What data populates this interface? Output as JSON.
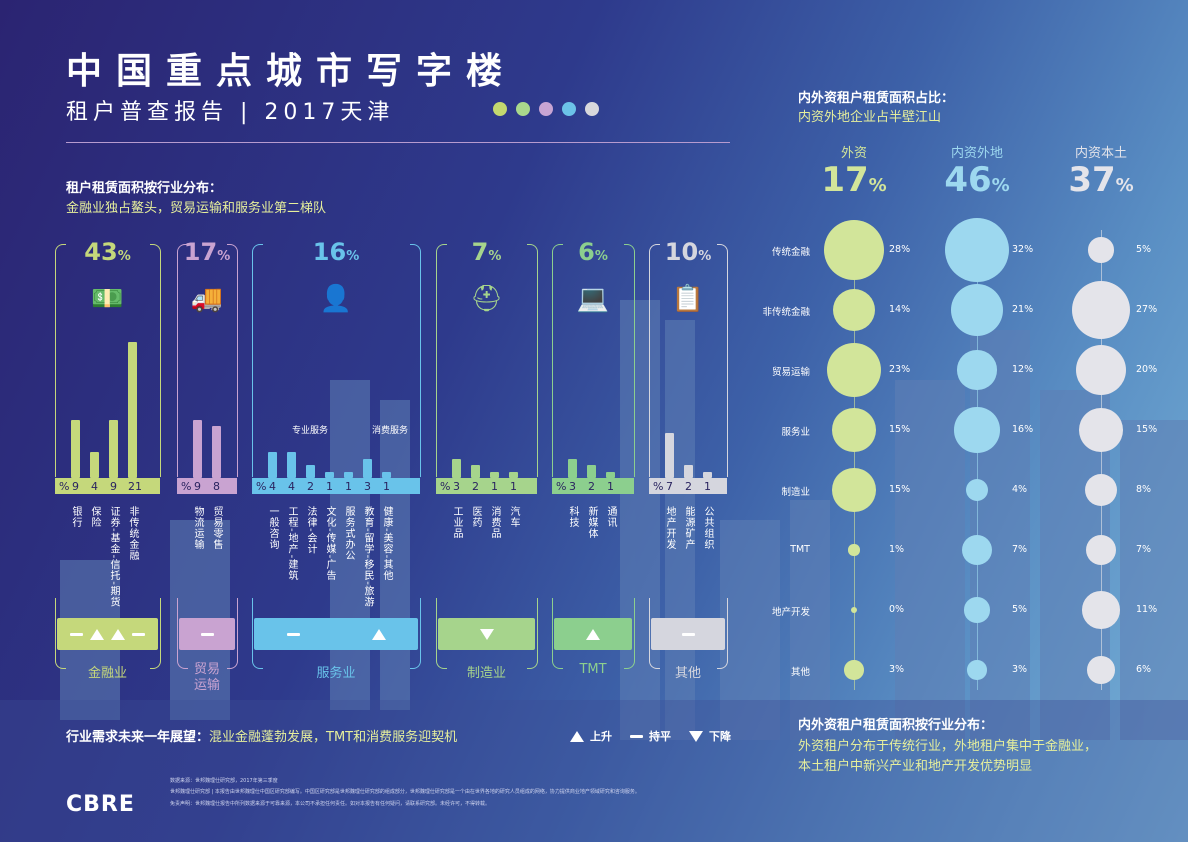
{
  "header": {
    "title": "中国重点城市写字楼",
    "subtitle": "租户普查报告 | 2017天津",
    "dots": [
      "#c3d86f",
      "#a9d98c",
      "#c8a5d3",
      "#6cc3e8",
      "#d8d8dc"
    ]
  },
  "left": {
    "title": "租户租赁面积按行业分布：",
    "subtitle": "金融业独占鳌头，贸易运输和服务业第二梯队",
    "sub_labels": {
      "professional": "专业服务",
      "consumer": "消费服务"
    },
    "percent_sign": "%",
    "outlook": {
      "title": "行业需求未来一年展望：",
      "text": "混业金融蓬勃发展，TMT和消费服务迎契机",
      "legend_up": "上升",
      "legend_flat": "持平",
      "legend_down": "下降"
    }
  },
  "colors": {
    "finance": "#c5d87b",
    "trade": "#c9a3d1",
    "service": "#69c3ea",
    "manufacturing": "#a6d48c",
    "tmt": "#8ccf8e",
    "other": "#d5d6de",
    "foreign": "#d2e59a",
    "nonlocal": "#9dd8ef",
    "local": "#e4e4ea"
  },
  "chart_data": [
    {
      "type": "bar",
      "title": "租户租赁面积按行业分布：",
      "groups": [
        {
          "name": "金融业",
          "share": "43",
          "color": "#c5d87b",
          "trend": [
            "flat",
            "up",
            "up",
            "flat"
          ],
          "categories": [
            "银行",
            "保险",
            "证券-基金-信托-期货",
            "非传统金融"
          ],
          "values": [
            9,
            4,
            9,
            21
          ]
        },
        {
          "name": "贸易运输",
          "share": "17",
          "color": "#c9a3d1",
          "trend": [
            "flat"
          ],
          "categories": [
            "物流运输",
            "贸易零售"
          ],
          "values": [
            9,
            8
          ]
        },
        {
          "name": "服务业",
          "share": "16",
          "color": "#69c3ea",
          "trend": [
            "flat",
            "up"
          ],
          "categories": [
            "一般咨询",
            "工程-地产-建筑",
            "法律-会计",
            "文化-传媒-广告",
            "服务式办公",
            "教育-留学-移民-旅游",
            "健康-美容-其他"
          ],
          "values": [
            4,
            4,
            2,
            1,
            1,
            3,
            1
          ]
        },
        {
          "name": "制造业",
          "share": "7",
          "color": "#a6d48c",
          "trend": [
            "down"
          ],
          "categories": [
            "工业品",
            "医药",
            "消费品",
            "汽车"
          ],
          "values": [
            3,
            2,
            1,
            1
          ]
        },
        {
          "name": "TMT",
          "share": "6",
          "color": "#8ccf8e",
          "trend": [
            "up"
          ],
          "categories": [
            "科技",
            "新媒体",
            "通讯"
          ],
          "values": [
            3,
            2,
            1
          ]
        },
        {
          "name": "其他",
          "share": "10",
          "color": "#d5d6de",
          "trend": [
            "flat"
          ],
          "categories": [
            "地产开发",
            "能源矿产",
            "公共组织"
          ],
          "values": [
            7,
            2,
            1
          ]
        }
      ]
    },
    {
      "type": "scatter",
      "title": "内外资租户租赁面积占比：",
      "subtitle": "内资外地企业占半壁江山",
      "rows": [
        "传统金融",
        "非传统金融",
        "贸易运输",
        "服务业",
        "制造业",
        "TMT",
        "地产开发",
        "其他"
      ],
      "series": [
        {
          "name": "外资",
          "share": "17",
          "values": [
            28,
            14,
            23,
            15,
            15,
            1,
            0,
            3
          ]
        },
        {
          "name": "内资外地",
          "share": "46",
          "values": [
            32,
            21,
            12,
            16,
            4,
            7,
            5,
            3
          ]
        },
        {
          "name": "内资本土",
          "share": "37",
          "values": [
            5,
            27,
            20,
            15,
            8,
            7,
            11,
            6
          ]
        }
      ]
    }
  ],
  "right": {
    "bottom_title": "内外资租户租赁面积按行业分布：",
    "bottom_line1": "外资租户分布于传统行业，外地租户集中于金融业，",
    "bottom_line2": "本土租户中新兴产业和地产开发优势明显"
  },
  "footer": {
    "logo": "CBRE",
    "source": "数据来源：世邦魏理仕研究部，2017年第三季度",
    "note1": "世邦魏理仕研究部 | 本报告由世邦魏理仕中国区研究部编写。中国区研究部是世邦魏理仕研究部的组成部分，世邦魏理仕研究部是一个由在世界各地的研究人员组成的网络，协力提供商业地产领域研究和咨询服务。",
    "note2": "免责声明：世邦魏理仕报告中所列数据来源于可靠来源，本公司不承担任何责任。如对本报告有任何疑问，请联系研究部。未经许可，不得转载。"
  }
}
